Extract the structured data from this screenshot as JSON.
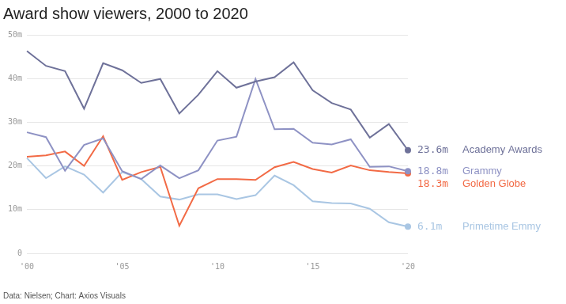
{
  "chart_data": {
    "type": "line",
    "title": "Award show viewers, 2000 to 2020",
    "source": "Data: Nielsen; Chart: Axios Visuals",
    "x": [
      2000,
      2001,
      2002,
      2003,
      2004,
      2005,
      2006,
      2007,
      2008,
      2009,
      2010,
      2011,
      2012,
      2013,
      2014,
      2015,
      2016,
      2017,
      2018,
      2019,
      2020
    ],
    "xlim": [
      2000,
      2020
    ],
    "xticks": [
      {
        "value": 2000,
        "label": "'00"
      },
      {
        "value": 2005,
        "label": "'05"
      },
      {
        "value": 2010,
        "label": "'10"
      },
      {
        "value": 2015,
        "label": "'15"
      },
      {
        "value": 2020,
        "label": "'20"
      }
    ],
    "ylim": [
      0,
      50
    ],
    "yticks": [
      0,
      {
        "value": 10,
        "label": "10m"
      },
      {
        "value": 20,
        "label": "20m"
      },
      {
        "value": 30,
        "label": "30m"
      },
      {
        "value": 40,
        "label": "40m"
      },
      {
        "value": 50,
        "label": "50m"
      }
    ],
    "grid": true,
    "series": [
      {
        "name": "Academy Awards",
        "color": "#6e7199",
        "values": [
          46.3,
          42.9,
          41.7,
          33.1,
          43.5,
          41.9,
          39.0,
          39.9,
          32.0,
          36.3,
          41.7,
          37.9,
          39.3,
          40.3,
          43.7,
          37.3,
          34.4,
          32.9,
          26.5,
          29.6,
          23.6
        ],
        "value_labels": [
          null,
          null,
          null,
          null,
          null,
          null,
          null,
          null,
          null,
          null,
          null,
          null,
          null,
          null,
          null,
          null,
          null,
          null,
          null,
          null,
          "23.6m"
        ]
      },
      {
        "name": "Grammy",
        "color": "#8e92c4",
        "values": [
          27.7,
          26.6,
          18.9,
          24.8,
          26.3,
          18.8,
          17.0,
          20.1,
          17.2,
          19.0,
          25.8,
          26.7,
          39.9,
          28.4,
          28.5,
          25.3,
          24.9,
          26.1,
          19.8,
          19.9,
          18.8
        ],
        "value_labels": [
          null,
          null,
          null,
          null,
          null,
          null,
          null,
          null,
          null,
          null,
          null,
          null,
          null,
          null,
          null,
          null,
          null,
          null,
          null,
          null,
          "18.8m"
        ]
      },
      {
        "name": "Golden Globe",
        "color": "#f26a45",
        "values": [
          22.1,
          22.4,
          23.3,
          20.0,
          26.8,
          16.8,
          18.6,
          19.8,
          6.3,
          14.9,
          17.0,
          17.0,
          16.8,
          19.7,
          20.9,
          19.3,
          18.5,
          20.1,
          19.0,
          18.6,
          18.3
        ],
        "value_labels": [
          null,
          null,
          null,
          null,
          null,
          null,
          null,
          null,
          null,
          null,
          null,
          null,
          null,
          null,
          null,
          null,
          null,
          null,
          null,
          null,
          "18.3m"
        ]
      },
      {
        "name": "Primetime Emmy",
        "color": "#a9c6e3",
        "values": [
          21.8,
          17.2,
          19.9,
          18.0,
          13.9,
          18.6,
          17.0,
          13.0,
          12.3,
          13.5,
          13.5,
          12.4,
          13.3,
          17.8,
          15.6,
          11.9,
          11.5,
          11.4,
          10.2,
          7.1,
          6.1
        ],
        "value_labels": [
          null,
          null,
          null,
          null,
          null,
          null,
          null,
          null,
          null,
          null,
          null,
          null,
          null,
          null,
          null,
          null,
          null,
          null,
          null,
          null,
          "6.1m"
        ]
      }
    ]
  }
}
